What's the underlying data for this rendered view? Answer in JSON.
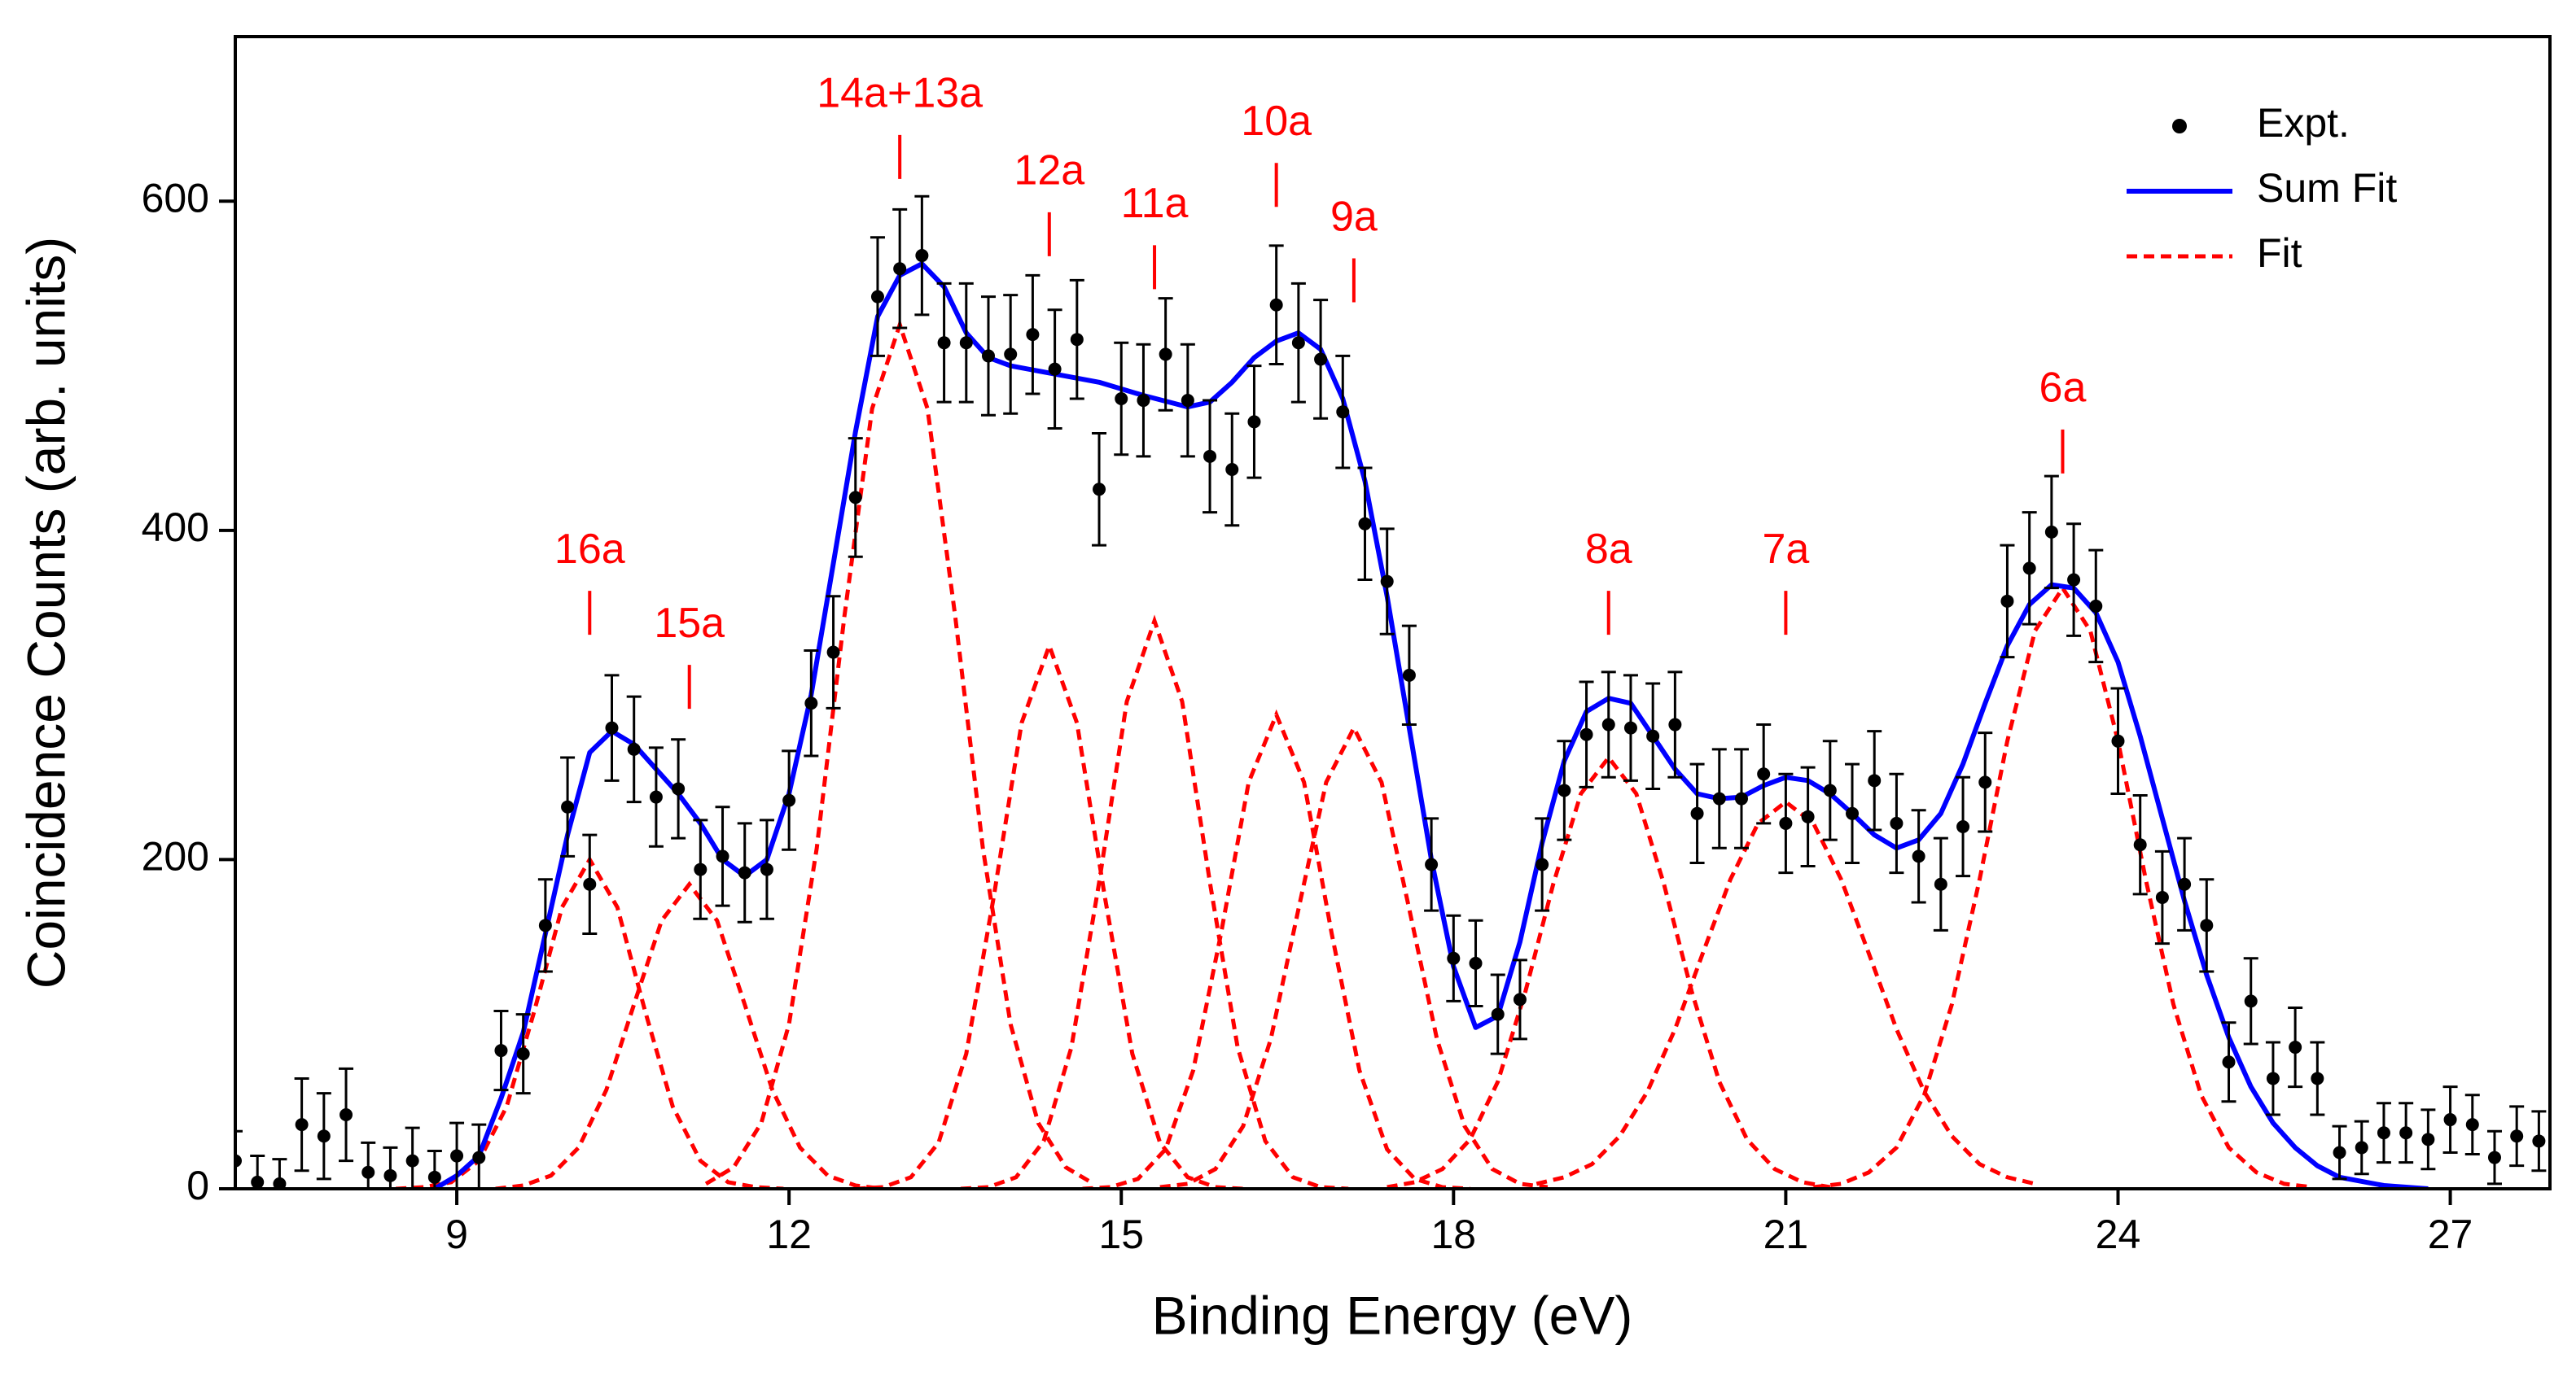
{
  "chart_data": {
    "type": "scatter",
    "xlabel": "Binding Energy (eV)",
    "ylabel": "Coincidence Counts (arb. units)",
    "xlim": [
      7.0,
      27.9
    ],
    "ylim": [
      0,
      700
    ],
    "xticks": [
      9,
      12,
      15,
      18,
      21,
      24,
      27
    ],
    "yticks": [
      0,
      200,
      400,
      600
    ],
    "legend": "upper right",
    "series": [
      {
        "name": "Expt.",
        "color": "#000000",
        "marker": "circle",
        "x": [
          7.0,
          7.2,
          7.4,
          7.6,
          7.8,
          8.0,
          8.2,
          8.4,
          8.6,
          8.8,
          9.0,
          9.2,
          9.4,
          9.6,
          9.8,
          10.0,
          10.2,
          10.4,
          10.6,
          10.8,
          11.0,
          11.2,
          11.4,
          11.6,
          11.8,
          12.0,
          12.2,
          12.4,
          12.6,
          12.8,
          13.0,
          13.2,
          13.4,
          13.6,
          13.8,
          14.0,
          14.2,
          14.4,
          14.6,
          14.8,
          15.0,
          15.2,
          15.4,
          15.6,
          15.8,
          16.0,
          16.2,
          16.4,
          16.6,
          16.8,
          17.0,
          17.2,
          17.4,
          17.6,
          17.8,
          18.0,
          18.2,
          18.4,
          18.6,
          18.8,
          19.0,
          19.2,
          19.4,
          19.6,
          19.8,
          20.0,
          20.2,
          20.4,
          20.6,
          20.8,
          21.0,
          21.2,
          21.4,
          21.6,
          21.8,
          22.0,
          22.2,
          22.4,
          22.6,
          22.8,
          23.0,
          23.2,
          23.4,
          23.6,
          23.8,
          24.0,
          24.2,
          24.4,
          24.6,
          24.8,
          25.0,
          25.2,
          25.4,
          25.6,
          25.8,
          26.0,
          26.2,
          26.4,
          26.6,
          26.8,
          27.0,
          27.2,
          27.4,
          27.6,
          27.8
        ],
        "values": [
          17,
          4,
          3,
          39,
          32,
          45,
          10,
          8,
          17,
          7,
          20,
          19,
          84,
          82,
          160,
          232,
          185,
          280,
          267,
          238,
          243,
          194,
          202,
          192,
          194,
          236,
          295,
          326,
          420,
          542,
          559,
          567,
          514,
          514,
          506,
          507,
          519,
          498,
          516,
          425,
          480,
          479,
          507,
          479,
          445,
          437,
          466,
          537,
          514,
          504,
          472,
          404,
          369,
          312,
          197,
          140,
          137,
          106,
          115,
          197,
          242,
          276,
          282,
          280,
          275,
          282,
          228,
          237,
          237,
          252,
          222,
          226,
          242,
          228,
          248,
          222,
          202,
          185,
          220,
          247,
          357,
          377,
          399,
          370,
          354,
          272,
          209,
          177,
          185,
          160,
          77,
          114,
          67,
          86,
          67,
          22,
          25,
          34,
          34,
          30,
          42,
          39,
          19,
          32,
          29
        ],
        "errors": [
          18,
          16,
          15,
          28,
          26,
          28,
          18,
          17,
          20,
          16,
          20,
          20,
          24,
          24,
          28,
          30,
          30,
          32,
          32,
          30,
          30,
          30,
          30,
          30,
          30,
          30,
          32,
          34,
          36,
          36,
          36,
          36,
          36,
          36,
          36,
          36,
          36,
          36,
          36,
          34,
          34,
          34,
          34,
          34,
          34,
          34,
          34,
          36,
          36,
          36,
          34,
          34,
          32,
          30,
          28,
          26,
          26,
          24,
          24,
          28,
          30,
          32,
          32,
          32,
          32,
          32,
          30,
          30,
          30,
          30,
          30,
          30,
          30,
          30,
          30,
          30,
          28,
          28,
          30,
          30,
          34,
          34,
          34,
          34,
          34,
          32,
          30,
          28,
          28,
          28,
          24,
          26,
          22,
          24,
          22,
          16,
          16,
          18,
          18,
          18,
          20,
          18,
          16,
          18,
          18
        ]
      },
      {
        "name": "Sum Fit",
        "color": "#0000ff",
        "line": "solid",
        "x": [
          8.8,
          9.0,
          9.2,
          9.4,
          9.6,
          9.8,
          10.0,
          10.2,
          10.4,
          10.6,
          10.8,
          11.0,
          11.2,
          11.4,
          11.6,
          11.8,
          12.0,
          12.2,
          12.4,
          12.6,
          12.8,
          13.0,
          13.2,
          13.4,
          13.6,
          13.8,
          14.0,
          14.4,
          14.8,
          15.2,
          15.6,
          15.8,
          16.0,
          16.2,
          16.4,
          16.6,
          16.8,
          17.0,
          17.2,
          17.4,
          17.6,
          17.8,
          18.0,
          18.2,
          18.4,
          18.6,
          18.8,
          19.0,
          19.2,
          19.4,
          19.6,
          19.8,
          20.0,
          20.2,
          20.4,
          20.6,
          20.8,
          21.0,
          21.2,
          21.4,
          21.6,
          21.8,
          22.0,
          22.2,
          22.4,
          22.6,
          22.8,
          23.0,
          23.2,
          23.4,
          23.6,
          23.8,
          24.0,
          24.2,
          24.4,
          24.6,
          24.8,
          25.0,
          25.2,
          25.4,
          25.6,
          25.8,
          26.0,
          26.4,
          26.8
        ],
        "values": [
          0,
          8,
          20,
          55,
          95,
          155,
          215,
          265,
          278,
          270,
          255,
          240,
          222,
          200,
          190,
          200,
          240,
          300,
          380,
          460,
          530,
          555,
          562,
          548,
          520,
          505,
          500,
          495,
          490,
          482,
          475,
          478,
          490,
          505,
          515,
          520,
          510,
          480,
          430,
          360,
          280,
          200,
          135,
          98,
          105,
          150,
          210,
          260,
          290,
          298,
          295,
          275,
          255,
          240,
          237,
          238,
          245,
          250,
          248,
          240,
          228,
          215,
          207,
          212,
          228,
          258,
          295,
          330,
          355,
          367,
          365,
          350,
          320,
          275,
          225,
          175,
          130,
          92,
          62,
          40,
          25,
          14,
          7,
          2,
          0
        ]
      },
      {
        "name": "Fit",
        "color": "#ff0000",
        "line": "dashed",
        "curves": [
          {
            "x": [
              8.45,
              8.7,
              8.95,
              9.2,
              9.45,
              9.7,
              9.95,
              10.2,
              10.45,
              10.7,
              10.95,
              11.2,
              11.45,
              11.7,
              11.95
            ],
            "values": [
              0,
              1,
              4,
              17,
              50,
              108,
              171,
              200,
              171,
              108,
              50,
              17,
              4,
              1,
              0
            ]
          },
          {
            "x": [
              9.35,
              9.6,
              9.85,
              10.1,
              10.35,
              10.6,
              10.85,
              11.1,
              11.35,
              11.6,
              11.85,
              12.1,
              12.35,
              12.6,
              12.85
            ],
            "values": [
              0,
              2,
              8,
              25,
              60,
              112,
              163,
              185,
              163,
              112,
              60,
              25,
              8,
              2,
              0
            ]
          },
          {
            "x": [
              11.25,
              11.5,
              11.75,
              12,
              12.25,
              12.5,
              12.75,
              13,
              13.25,
              13.5,
              13.75,
              14,
              14.25,
              14.5,
              14.75
            ],
            "values": [
              3,
              13,
              40,
              100,
              207,
              348,
              474,
              525,
              474,
              348,
              207,
              100,
              40,
              13,
              3
            ]
          },
          {
            "x": [
              12.6,
              12.85,
              13.1,
              13.35,
              13.6,
              13.85,
              14.1,
              14.35,
              14.6,
              14.85,
              15.1,
              15.35,
              15.6,
              15.85,
              16.1
            ],
            "values": [
              0,
              1,
              7,
              28,
              82,
              178,
              283,
              330,
              283,
              178,
              82,
              28,
              7,
              1,
              0
            ]
          },
          {
            "x": [
              13.55,
              13.8,
              14.05,
              14.3,
              14.55,
              14.8,
              15.05,
              15.3,
              15.55,
              15.8,
              16.05,
              16.3,
              16.55,
              16.8,
              17.05
            ],
            "values": [
              0,
              1,
              7,
              29,
              86,
              186,
              296,
              345,
              296,
              186,
              86,
              29,
              7,
              1,
              0
            ]
          },
          {
            "x": [
              14.65,
              14.9,
              15.15,
              15.4,
              15.65,
              15.9,
              16.15,
              16.4,
              16.65,
              16.9,
              17.15,
              17.4,
              17.65,
              17.9,
              18.15
            ],
            "values": [
              0,
              1,
              6,
              24,
              72,
              155,
              247,
              288,
              247,
              155,
              72,
              24,
              6,
              1,
              0
            ]
          },
          {
            "x": [
              15.35,
              15.6,
              15.85,
              16.1,
              16.35,
              16.6,
              16.85,
              17.1,
              17.35,
              17.6,
              17.85,
              18.1,
              18.35,
              18.6,
              18.85
            ],
            "values": [
              1,
              3,
              12,
              38,
              91,
              170,
              247,
              280,
              247,
              170,
              91,
              38,
              12,
              3,
              1
            ]
          },
          {
            "x": [
              17.4,
              17.65,
              17.9,
              18.15,
              18.4,
              18.65,
              18.9,
              19.15,
              19.4,
              19.65,
              19.9,
              20.15,
              20.4,
              20.65,
              20.9,
              21.15,
              21.4
            ],
            "values": [
              1,
              4,
              12,
              30,
              65,
              120,
              185,
              240,
              262,
              240,
              185,
              120,
              65,
              30,
              12,
              4,
              1
            ]
          },
          {
            "x": [
              18.75,
              19,
              19.25,
              19.5,
              19.75,
              20,
              20.25,
              20.5,
              20.75,
              21,
              21.25,
              21.5,
              21.75,
              22,
              22.25,
              22.5,
              22.75,
              23,
              23.25
            ],
            "values": [
              3,
              7,
              15,
              32,
              59,
              97,
              143,
              188,
              222,
              235,
              222,
              188,
              143,
              97,
              59,
              32,
              15,
              7,
              3
            ]
          },
          {
            "x": [
              21.25,
              21.5,
              21.75,
              22,
              22.25,
              22.5,
              22.75,
              23,
              23.25,
              23.5,
              23.75,
              24,
              24.25,
              24.5,
              24.75,
              25,
              25.25,
              25.5,
              25.75
            ],
            "values": [
              1,
              3,
              10,
              25,
              57,
              112,
              188,
              272,
              339,
              365,
              339,
              272,
              188,
              112,
              57,
              25,
              10,
              3,
              1
            ]
          }
        ]
      }
    ],
    "annotations": [
      {
        "text": "16a",
        "x": 10.2,
        "y": 387
      },
      {
        "text": "15a",
        "x": 11.1,
        "y": 342
      },
      {
        "text": "14a+13a",
        "x": 13.0,
        "y": 664
      },
      {
        "text": "12a",
        "x": 14.35,
        "y": 617
      },
      {
        "text": "11a",
        "x": 15.3,
        "y": 597
      },
      {
        "text": "10a",
        "x": 16.4,
        "y": 647
      },
      {
        "text": "9a",
        "x": 17.1,
        "y": 589
      },
      {
        "text": "8a",
        "x": 19.4,
        "y": 387
      },
      {
        "text": "7a",
        "x": 21.0,
        "y": 387
      },
      {
        "text": "6a",
        "x": 23.5,
        "y": 485
      }
    ]
  }
}
